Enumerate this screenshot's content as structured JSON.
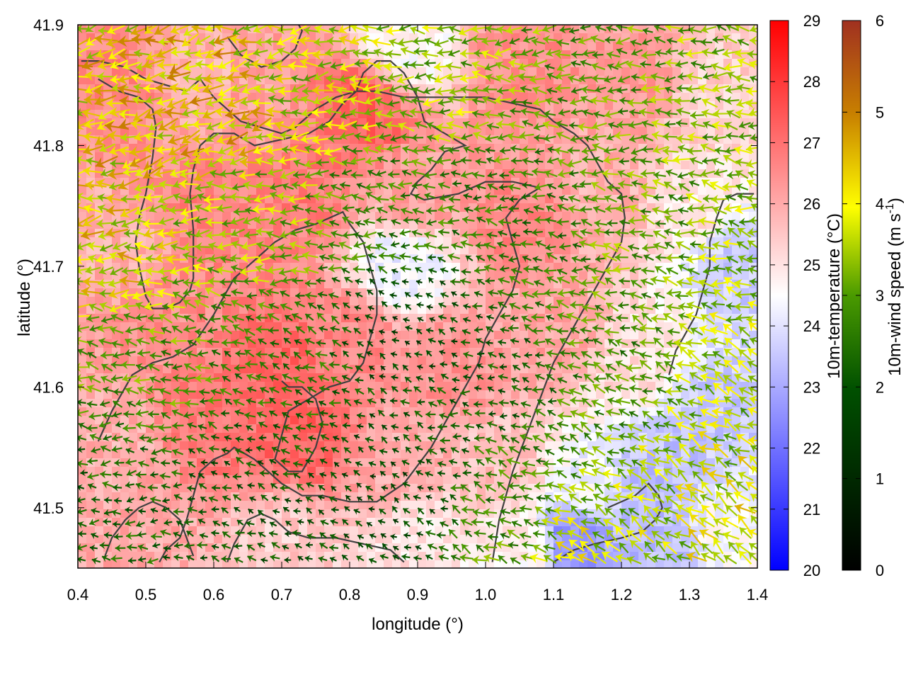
{
  "chart_data": {
    "type": "heatmap",
    "title": "",
    "xlabel": "longitude (°)",
    "ylabel": "latitude (°)",
    "xlim": [
      0.4,
      1.4
    ],
    "ylim": [
      41.45,
      41.9
    ],
    "x_ticks": [
      "0.4",
      "0.5",
      "0.6",
      "0.7",
      "0.8",
      "0.9",
      "1.0",
      "1.1",
      "1.2",
      "1.3",
      "1.4"
    ],
    "y_ticks": [
      "41.5",
      "41.6",
      "41.7",
      "41.8",
      "41.9"
    ],
    "x_tick_values": [
      0.4,
      0.5,
      0.6,
      0.7,
      0.8,
      0.9,
      1.0,
      1.1,
      1.2,
      1.3,
      1.4
    ],
    "y_tick_values": [
      41.5,
      41.6,
      41.7,
      41.8,
      41.9
    ],
    "temperature_colorbar": {
      "label": "10m-temperature (°C)",
      "range": [
        20,
        29
      ],
      "ticks": [
        "20",
        "21",
        "22",
        "23",
        "24",
        "25",
        "26",
        "27",
        "28",
        "29"
      ],
      "colors": [
        "#0000ff",
        "#ffffff",
        "#ff0000"
      ]
    },
    "wind_colorbar": {
      "label_main": "10m-wind speed (m s",
      "label_sup": "-1",
      "label_end": ")",
      "range": [
        0,
        6
      ],
      "ticks": [
        "0",
        "1",
        "2",
        "3",
        "4",
        "5",
        "6"
      ],
      "colors": [
        "#000000",
        "#005000",
        "#4a9a00",
        "#ffff00",
        "#c88000",
        "#a03020"
      ]
    },
    "temperature_field_anchors": [
      {
        "x": 0.47,
        "y": 41.85,
        "t": 26.6
      },
      {
        "x": 0.57,
        "y": 41.86,
        "t": 25.8
      },
      {
        "x": 0.66,
        "y": 41.83,
        "t": 26.2
      },
      {
        "x": 0.82,
        "y": 41.83,
        "t": 27.3
      },
      {
        "x": 0.89,
        "y": 41.88,
        "t": 24.6
      },
      {
        "x": 1.05,
        "y": 41.87,
        "t": 26.5
      },
      {
        "x": 1.22,
        "y": 41.85,
        "t": 26.3
      },
      {
        "x": 1.33,
        "y": 41.84,
        "t": 25.3
      },
      {
        "x": 0.45,
        "y": 41.72,
        "t": 25.9
      },
      {
        "x": 0.6,
        "y": 41.75,
        "t": 26.7
      },
      {
        "x": 0.72,
        "y": 41.76,
        "t": 26.8
      },
      {
        "x": 0.9,
        "y": 41.76,
        "t": 26.2
      },
      {
        "x": 1.05,
        "y": 41.74,
        "t": 26.6
      },
      {
        "x": 1.18,
        "y": 41.76,
        "t": 25.9
      },
      {
        "x": 1.3,
        "y": 41.75,
        "t": 25.0
      },
      {
        "x": 1.37,
        "y": 41.7,
        "t": 23.6
      },
      {
        "x": 0.88,
        "y": 41.7,
        "t": 24.2
      },
      {
        "x": 0.55,
        "y": 41.65,
        "t": 26.5
      },
      {
        "x": 0.7,
        "y": 41.62,
        "t": 27.2
      },
      {
        "x": 0.8,
        "y": 41.64,
        "t": 26.6
      },
      {
        "x": 0.95,
        "y": 41.62,
        "t": 26.4
      },
      {
        "x": 1.1,
        "y": 41.64,
        "t": 26.1
      },
      {
        "x": 1.22,
        "y": 41.62,
        "t": 25.1
      },
      {
        "x": 1.33,
        "y": 41.58,
        "t": 23.5
      },
      {
        "x": 0.45,
        "y": 41.55,
        "t": 25.9
      },
      {
        "x": 0.6,
        "y": 41.57,
        "t": 26.9
      },
      {
        "x": 0.73,
        "y": 41.56,
        "t": 27.3
      },
      {
        "x": 0.88,
        "y": 41.54,
        "t": 26.0
      },
      {
        "x": 1.03,
        "y": 41.53,
        "t": 25.6
      },
      {
        "x": 1.15,
        "y": 41.52,
        "t": 24.3
      },
      {
        "x": 1.25,
        "y": 41.53,
        "t": 23.4
      },
      {
        "x": 0.5,
        "y": 41.47,
        "t": 26.0
      },
      {
        "x": 0.7,
        "y": 41.47,
        "t": 25.4
      },
      {
        "x": 0.9,
        "y": 41.47,
        "t": 25.0
      },
      {
        "x": 1.05,
        "y": 41.47,
        "t": 24.8
      },
      {
        "x": 1.13,
        "y": 41.475,
        "t": 22.6
      },
      {
        "x": 1.25,
        "y": 41.47,
        "t": 23.3
      },
      {
        "x": 1.36,
        "y": 41.48,
        "t": 24.4
      }
    ],
    "wind_field_anchors": [
      {
        "x": 0.45,
        "y": 41.82,
        "s": 3.8,
        "dir": 190
      },
      {
        "x": 0.6,
        "y": 41.83,
        "s": 3.9,
        "dir": 195
      },
      {
        "x": 0.75,
        "y": 41.85,
        "s": 3.2,
        "dir": 185
      },
      {
        "x": 0.95,
        "y": 41.86,
        "s": 2.8,
        "dir": 180
      },
      {
        "x": 1.15,
        "y": 41.85,
        "s": 2.4,
        "dir": 180
      },
      {
        "x": 1.35,
        "y": 41.83,
        "s": 2.7,
        "dir": 175
      },
      {
        "x": 0.45,
        "y": 41.72,
        "s": 3.6,
        "dir": 185
      },
      {
        "x": 0.65,
        "y": 41.73,
        "s": 2.7,
        "dir": 180
      },
      {
        "x": 0.85,
        "y": 41.75,
        "s": 2.1,
        "dir": 175
      },
      {
        "x": 1.05,
        "y": 41.73,
        "s": 1.9,
        "dir": 170
      },
      {
        "x": 1.25,
        "y": 41.72,
        "s": 2.5,
        "dir": 170
      },
      {
        "x": 1.37,
        "y": 41.7,
        "s": 3.0,
        "dir": 165
      },
      {
        "x": 0.5,
        "y": 41.62,
        "s": 2.4,
        "dir": 170
      },
      {
        "x": 0.7,
        "y": 41.62,
        "s": 1.8,
        "dir": 160
      },
      {
        "x": 0.88,
        "y": 41.65,
        "s": 1.0,
        "dir": 150
      },
      {
        "x": 1.0,
        "y": 41.6,
        "s": 1.4,
        "dir": 170
      },
      {
        "x": 1.2,
        "y": 41.62,
        "s": 2.2,
        "dir": 160
      },
      {
        "x": 1.35,
        "y": 41.6,
        "s": 3.1,
        "dir": 155
      },
      {
        "x": 0.45,
        "y": 41.52,
        "s": 1.6,
        "dir": 180
      },
      {
        "x": 0.65,
        "y": 41.52,
        "s": 1.3,
        "dir": 160
      },
      {
        "x": 0.85,
        "y": 41.52,
        "s": 1.1,
        "dir": 150
      },
      {
        "x": 1.05,
        "y": 41.52,
        "s": 2.0,
        "dir": 160
      },
      {
        "x": 1.2,
        "y": 41.5,
        "s": 3.0,
        "dir": 150
      },
      {
        "x": 1.35,
        "y": 41.5,
        "s": 3.4,
        "dir": 145
      },
      {
        "x": 1.15,
        "y": 41.47,
        "s": 3.2,
        "dir": 150
      }
    ],
    "outlines": [
      [
        [
          0.405,
          41.87
        ],
        [
          0.43,
          41.87
        ],
        [
          0.47,
          41.865
        ],
        [
          0.5,
          41.855
        ],
        [
          0.53,
          41.85
        ],
        [
          0.56,
          41.845
        ],
        [
          0.58,
          41.855
        ],
        [
          0.6,
          41.84
        ],
        [
          0.64,
          41.82
        ],
        [
          0.67,
          41.815
        ],
        [
          0.7,
          41.81
        ],
        [
          0.72,
          41.815
        ],
        [
          0.75,
          41.83
        ],
        [
          0.78,
          41.84
        ],
        [
          0.81,
          41.845
        ],
        [
          0.84,
          41.845
        ],
        [
          0.88,
          41.84
        ],
        [
          0.92,
          41.84
        ],
        [
          0.96,
          41.84
        ],
        [
          1.0,
          41.84
        ],
        [
          1.04,
          41.835
        ],
        [
          1.08,
          41.83
        ],
        [
          1.1,
          41.82
        ],
        [
          1.13,
          41.81
        ],
        [
          1.15,
          41.8
        ],
        [
          1.16,
          41.79
        ],
        [
          1.18,
          41.77
        ],
        [
          1.2,
          41.76
        ],
        [
          1.205,
          41.74
        ],
        [
          1.2,
          41.72
        ],
        [
          1.18,
          41.7
        ],
        [
          1.16,
          41.68
        ],
        [
          1.14,
          41.66
        ],
        [
          1.12,
          41.64
        ],
        [
          1.1,
          41.62
        ],
        [
          1.08,
          41.59
        ],
        [
          1.06,
          41.56
        ],
        [
          1.04,
          41.53
        ],
        [
          1.02,
          41.49
        ],
        [
          1.01,
          41.455
        ]
      ],
      [
        [
          0.43,
          41.855
        ],
        [
          0.46,
          41.845
        ],
        [
          0.49,
          41.84
        ],
        [
          0.51,
          41.83
        ],
        [
          0.515,
          41.815
        ],
        [
          0.51,
          41.79
        ],
        [
          0.5,
          41.76
        ],
        [
          0.49,
          41.74
        ],
        [
          0.485,
          41.72
        ],
        [
          0.49,
          41.7
        ],
        [
          0.5,
          41.675
        ],
        [
          0.51,
          41.665
        ],
        [
          0.53,
          41.665
        ],
        [
          0.55,
          41.67
        ],
        [
          0.565,
          41.68
        ],
        [
          0.57,
          41.69
        ],
        [
          0.57,
          41.73
        ],
        [
          0.565,
          41.76
        ],
        [
          0.57,
          41.78
        ],
        [
          0.58,
          41.8
        ],
        [
          0.6,
          41.81
        ],
        [
          0.63,
          41.81
        ],
        [
          0.66,
          41.8
        ],
        [
          0.7,
          41.805
        ],
        [
          0.74,
          41.81
        ],
        [
          0.77,
          41.82
        ],
        [
          0.79,
          41.835
        ],
        [
          0.81,
          41.845
        ]
      ],
      [
        [
          0.81,
          41.845
        ],
        [
          0.82,
          41.86
        ],
        [
          0.84,
          41.87
        ],
        [
          0.86,
          41.87
        ],
        [
          0.88,
          41.86
        ],
        [
          0.9,
          41.84
        ],
        [
          0.91,
          41.82
        ],
        [
          0.94,
          41.81
        ],
        [
          0.97,
          41.8
        ],
        [
          0.94,
          41.795
        ],
        [
          0.92,
          41.78
        ],
        [
          0.9,
          41.77
        ],
        [
          0.89,
          41.76
        ],
        [
          0.91,
          41.755
        ],
        [
          0.96,
          41.76
        ],
        [
          1.0,
          41.77
        ],
        [
          1.04,
          41.77
        ],
        [
          1.08,
          41.765
        ]
      ],
      [
        [
          1.08,
          41.765
        ],
        [
          1.05,
          41.755
        ],
        [
          1.03,
          41.74
        ],
        [
          1.04,
          41.72
        ],
        [
          1.05,
          41.7
        ],
        [
          1.04,
          41.68
        ],
        [
          1.02,
          41.66
        ],
        [
          1.0,
          41.64
        ],
        [
          0.99,
          41.62
        ],
        [
          0.97,
          41.6
        ],
        [
          0.95,
          41.58
        ],
        [
          0.92,
          41.55
        ],
        [
          0.88,
          41.52
        ],
        [
          0.84,
          41.505
        ],
        [
          0.8,
          41.505
        ],
        [
          0.76,
          41.51
        ],
        [
          0.73,
          41.51
        ],
        [
          0.7,
          41.52
        ],
        [
          0.66,
          41.54
        ],
        [
          0.63,
          41.55
        ],
        [
          0.62,
          41.545
        ],
        [
          0.6,
          41.54
        ],
        [
          0.58,
          41.53
        ],
        [
          0.57,
          41.51
        ],
        [
          0.56,
          41.49
        ],
        [
          0.55,
          41.475
        ],
        [
          0.53,
          41.465
        ],
        [
          0.52,
          41.455
        ]
      ],
      [
        [
          0.43,
          41.555
        ],
        [
          0.45,
          41.58
        ],
        [
          0.48,
          41.61
        ],
        [
          0.51,
          41.62
        ],
        [
          0.54,
          41.625
        ],
        [
          0.57,
          41.635
        ],
        [
          0.6,
          41.66
        ],
        [
          0.63,
          41.69
        ],
        [
          0.66,
          41.705
        ],
        [
          0.69,
          41.72
        ],
        [
          0.72,
          41.73
        ],
        [
          0.75,
          41.735
        ],
        [
          0.77,
          41.74
        ],
        [
          0.79,
          41.745
        ],
        [
          0.8,
          41.735
        ],
        [
          0.82,
          41.72
        ],
        [
          0.83,
          41.7
        ],
        [
          0.84,
          41.68
        ],
        [
          0.84,
          41.66
        ],
        [
          0.83,
          41.64
        ],
        [
          0.82,
          41.62
        ],
        [
          0.8,
          41.605
        ],
        [
          0.77,
          41.6
        ],
        [
          0.74,
          41.59
        ],
        [
          0.71,
          41.58
        ],
        [
          0.7,
          41.56
        ],
        [
          0.69,
          41.54
        ]
      ],
      [
        [
          0.69,
          41.54
        ],
        [
          0.71,
          41.53
        ],
        [
          0.73,
          41.53
        ],
        [
          0.75,
          41.55
        ],
        [
          0.76,
          41.57
        ],
        [
          0.75,
          41.59
        ],
        [
          0.73,
          41.6
        ],
        [
          0.71,
          41.6
        ],
        [
          0.7,
          41.605
        ]
      ],
      [
        [
          0.44,
          41.46
        ],
        [
          0.45,
          41.475
        ],
        [
          0.47,
          41.49
        ],
        [
          0.49,
          41.5
        ],
        [
          0.51,
          41.505
        ],
        [
          0.53,
          41.5
        ],
        [
          0.55,
          41.49
        ],
        [
          0.56,
          41.475
        ],
        [
          0.57,
          41.46
        ]
      ],
      [
        [
          0.62,
          41.455
        ],
        [
          0.63,
          41.47
        ],
        [
          0.65,
          41.49
        ],
        [
          0.67,
          41.495
        ],
        [
          0.69,
          41.49
        ],
        [
          0.71,
          41.48
        ],
        [
          0.74,
          41.475
        ],
        [
          0.78,
          41.475
        ],
        [
          0.82,
          41.47
        ],
        [
          0.86,
          41.465
        ],
        [
          0.88,
          41.455
        ]
      ],
      [
        [
          0.62,
          41.89
        ],
        [
          0.64,
          41.875
        ],
        [
          0.67,
          41.865
        ],
        [
          0.7,
          41.87
        ],
        [
          0.72,
          41.88
        ],
        [
          0.73,
          41.895
        ],
        [
          0.725,
          41.9
        ]
      ],
      [
        [
          1.1,
          41.455
        ],
        [
          1.13,
          41.465
        ],
        [
          1.16,
          41.47
        ],
        [
          1.2,
          41.475
        ],
        [
          1.23,
          41.48
        ],
        [
          1.25,
          41.49
        ],
        [
          1.26,
          41.5
        ],
        [
          1.255,
          41.51
        ],
        [
          1.24,
          41.52
        ],
        [
          1.22,
          41.51
        ],
        [
          1.2,
          41.505
        ],
        [
          1.18,
          41.5
        ]
      ],
      [
        [
          1.27,
          41.61
        ],
        [
          1.28,
          41.63
        ],
        [
          1.29,
          41.64
        ],
        [
          1.3,
          41.65
        ],
        [
          1.31,
          41.66
        ],
        [
          1.32,
          41.68
        ],
        [
          1.33,
          41.7
        ],
        [
          1.33,
          41.72
        ],
        [
          1.34,
          41.74
        ],
        [
          1.35,
          41.755
        ],
        [
          1.37,
          41.76
        ],
        [
          1.395,
          41.76
        ]
      ]
    ]
  }
}
